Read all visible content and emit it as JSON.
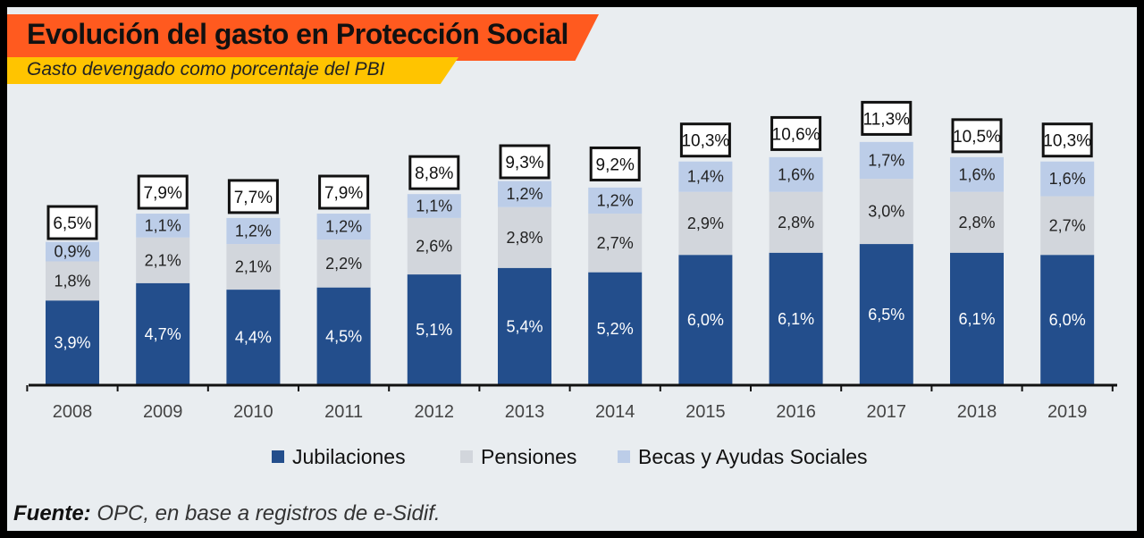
{
  "header": {
    "title": "Evolución del gasto en Protección Social",
    "subtitle": "Gasto devengado como porcentaje del PBI"
  },
  "footer": {
    "source_label": "Fuente:",
    "source_text": " OPC, en base a registros de e-Sidif."
  },
  "chart_data": {
    "type": "bar",
    "stacked": true,
    "categories": [
      "2008",
      "2009",
      "2010",
      "2011",
      "2012",
      "2013",
      "2014",
      "2015",
      "2016",
      "2017",
      "2018",
      "2019"
    ],
    "series": [
      {
        "name": "Jubilaciones",
        "color": "#234e8c",
        "label_color": "#ffffff",
        "values": [
          3.9,
          4.7,
          4.4,
          4.5,
          5.1,
          5.4,
          5.2,
          6.0,
          6.1,
          6.5,
          6.1,
          6.0
        ],
        "labels": [
          "3,9%",
          "4,7%",
          "4,4%",
          "4,5%",
          "5,1%",
          "5,4%",
          "5,2%",
          "6,0%",
          "6,1%",
          "6,5%",
          "6,1%",
          "6,0%"
        ]
      },
      {
        "name": "Pensiones",
        "color": "#d2d6dc",
        "label_color": "#222222",
        "values": [
          1.8,
          2.1,
          2.1,
          2.2,
          2.6,
          2.8,
          2.7,
          2.9,
          2.8,
          3.0,
          2.8,
          2.7
        ],
        "labels": [
          "1,8%",
          "2,1%",
          "2,1%",
          "2,2%",
          "2,6%",
          "2,8%",
          "2,7%",
          "2,9%",
          "2,8%",
          "3,0%",
          "2,8%",
          "2,7%"
        ]
      },
      {
        "name": "Becas y Ayudas Sociales",
        "color": "#bccde8",
        "label_color": "#222222",
        "values": [
          0.9,
          1.1,
          1.2,
          1.2,
          1.1,
          1.2,
          1.2,
          1.4,
          1.6,
          1.7,
          1.6,
          1.6
        ],
        "labels": [
          "0,9%",
          "1,1%",
          "1,2%",
          "1,2%",
          "1,1%",
          "1,2%",
          "1,2%",
          "1,4%",
          "1,6%",
          "1,7%",
          "1,6%",
          "1,6%"
        ]
      }
    ],
    "totals": [
      6.5,
      7.9,
      7.7,
      7.9,
      8.8,
      9.3,
      9.2,
      10.3,
      10.6,
      11.3,
      10.5,
      10.3
    ],
    "total_labels": [
      "6,5%",
      "7,9%",
      "7,7%",
      "7,9%",
      "8,8%",
      "9,3%",
      "9,2%",
      "10,3%",
      "10,6%",
      "11,3%",
      "10,5%",
      "10,3%"
    ],
    "ylim": [
      0,
      12.6
    ],
    "grid": false,
    "legend_position": "bottom"
  }
}
